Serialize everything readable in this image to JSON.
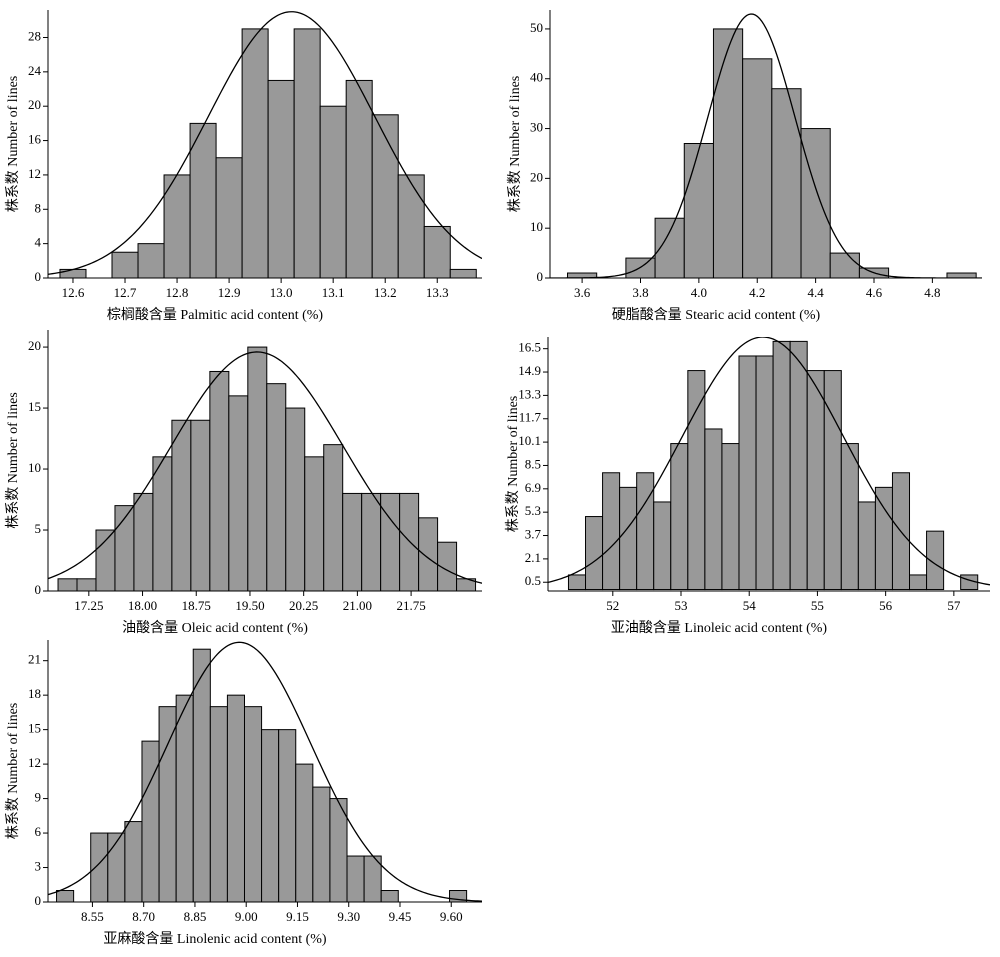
{
  "chart_data": [
    {
      "type": "histogram",
      "xlabel": "棕榈酸含量 Palmitic acid content (%)",
      "ylabel": "株系数 Number of lines",
      "color": "#999999",
      "bins": [
        12.575,
        12.625,
        12.675,
        12.725,
        12.775,
        12.825,
        12.875,
        12.925,
        12.975,
        13.025,
        13.075,
        13.125,
        13.175,
        13.225,
        13.275,
        13.325,
        13.375
      ],
      "counts": [
        1,
        0,
        3,
        4,
        12,
        18,
        14,
        29,
        23,
        29,
        20,
        23,
        19,
        12,
        6,
        1
      ],
      "xlim": [
        12.552,
        13.386
      ],
      "ylim": [
        0,
        31.2
      ],
      "xticks": [
        12.6,
        12.7,
        12.8,
        12.9,
        {
          "value": 13.0,
          "label": "13.0"
        },
        13.1,
        13.2,
        13.3
      ],
      "yticks": [
        0,
        4,
        8,
        12,
        16,
        20,
        24,
        28
      ],
      "fit": {
        "mean": 13.02,
        "sd": 0.16,
        "peak": 31
      }
    },
    {
      "type": "histogram",
      "xlabel": "硬脂酸含量 Stearic acid content (%)",
      "ylabel": "株系数 Number of lines",
      "color": "#999999",
      "bins": [
        3.55,
        3.65,
        3.75,
        3.85,
        3.95,
        4.05,
        4.15,
        4.25,
        4.35,
        4.45,
        4.55,
        4.65,
        4.75,
        4.85,
        4.95
      ],
      "counts": [
        1,
        0,
        4,
        12,
        27,
        50,
        44,
        38,
        30,
        5,
        2,
        0,
        0,
        1
      ],
      "xlim": [
        3.49,
        4.97
      ],
      "ylim": [
        0,
        53.8
      ],
      "xticks": [
        3.6,
        3.8,
        {
          "value": 4.0,
          "label": "4.0"
        },
        4.2,
        4.4,
        4.6,
        4.8
      ],
      "yticks": [
        0,
        10,
        20,
        30,
        40,
        50
      ],
      "fit": {
        "mean": 4.18,
        "sd": 0.15,
        "peak": 53
      }
    },
    {
      "type": "histogram",
      "xlabel": "油酸含量 Oleic acid content (%)",
      "ylabel": "株系数 Number of lines",
      "color": "#999999",
      "bins": [
        16.82,
        17.085,
        17.35,
        17.615,
        17.88,
        18.145,
        18.41,
        18.675,
        18.94,
        19.205,
        19.47,
        19.735,
        20.0,
        20.265,
        20.53,
        20.795,
        21.06,
        21.325,
        21.59,
        21.855,
        22.12,
        22.385,
        22.65
      ],
      "counts": [
        1,
        1,
        5,
        7,
        8,
        11,
        14,
        14,
        18,
        16,
        20,
        17,
        15,
        11,
        12,
        8,
        8,
        8,
        8,
        6,
        4,
        1
      ],
      "xlim": [
        16.68,
        22.74
      ],
      "ylim": [
        0,
        21.4
      ],
      "xticks": [
        17.25,
        {
          "value": 18.0,
          "label": "18.00"
        },
        18.75,
        {
          "value": 19.5,
          "label": "19.50"
        },
        20.25,
        {
          "value": 21.0,
          "label": "21.00"
        },
        21.75
      ],
      "yticks": [
        0,
        5,
        10,
        15,
        20
      ],
      "fit": {
        "mean": 19.6,
        "sd": 1.2,
        "peak": 19.6
      }
    },
    {
      "type": "histogram",
      "xlabel": "亚油酸含量 Linoleic acid content (%)",
      "ylabel": "株系数 Number of lines",
      "color": "#999999",
      "bins": [
        51.35,
        51.6,
        51.85,
        52.1,
        52.35,
        52.6,
        52.85,
        53.1,
        53.35,
        53.6,
        53.85,
        54.1,
        54.35,
        54.6,
        54.85,
        55.1,
        55.35,
        55.6,
        55.85,
        56.1,
        56.35,
        56.6,
        56.85,
        57.1,
        57.35
      ],
      "counts": [
        1,
        5,
        8,
        7,
        8,
        6,
        10,
        15,
        11,
        10,
        16,
        16,
        17,
        17,
        15,
        15,
        10,
        6,
        7,
        8,
        1,
        4,
        0,
        1
      ],
      "xlim": [
        51.05,
        57.53
      ],
      "ylim": [
        -0.1,
        17.3
      ],
      "xticks": [
        52,
        53,
        54,
        55,
        56,
        57
      ],
      "yticks": [
        0.5,
        2.1,
        3.7,
        5.3,
        6.9,
        8.5,
        10.1,
        11.7,
        13.3,
        14.9,
        16.5
      ],
      "fit": {
        "mean": 54.2,
        "sd": 1.18,
        "peak": 17.3
      }
    },
    {
      "type": "histogram",
      "xlabel": "亚麻酸含量 Linolenic acid content (%)",
      "ylabel": "株系数 Number of lines",
      "color": "#999999",
      "bins": [
        8.445,
        8.495,
        8.545,
        8.595,
        8.645,
        8.695,
        8.745,
        8.795,
        8.845,
        8.895,
        8.945,
        8.995,
        9.045,
        9.095,
        9.145,
        9.195,
        9.245,
        9.295,
        9.345,
        9.395,
        9.445,
        9.495,
        9.545,
        9.595,
        9.645
      ],
      "counts": [
        1,
        0,
        6,
        6,
        7,
        14,
        17,
        18,
        22,
        17,
        18,
        17,
        15,
        15,
        12,
        10,
        9,
        4,
        4,
        1,
        0,
        0,
        0,
        1
      ],
      "xlim": [
        8.42,
        9.69
      ],
      "ylim": [
        0,
        22.8
      ],
      "xticks": [
        8.55,
        {
          "value": 8.7,
          "label": "8.70"
        },
        8.85,
        {
          "value": 9.0,
          "label": "9.00"
        },
        9.15,
        {
          "value": 9.3,
          "label": "9.30"
        },
        9.45,
        {
          "value": 9.6,
          "label": "9.60"
        }
      ],
      "yticks": [
        0,
        3,
        6,
        9,
        12,
        15,
        18,
        21
      ],
      "fit": {
        "mean": 8.98,
        "sd": 0.21,
        "peak": 22.6
      }
    }
  ]
}
